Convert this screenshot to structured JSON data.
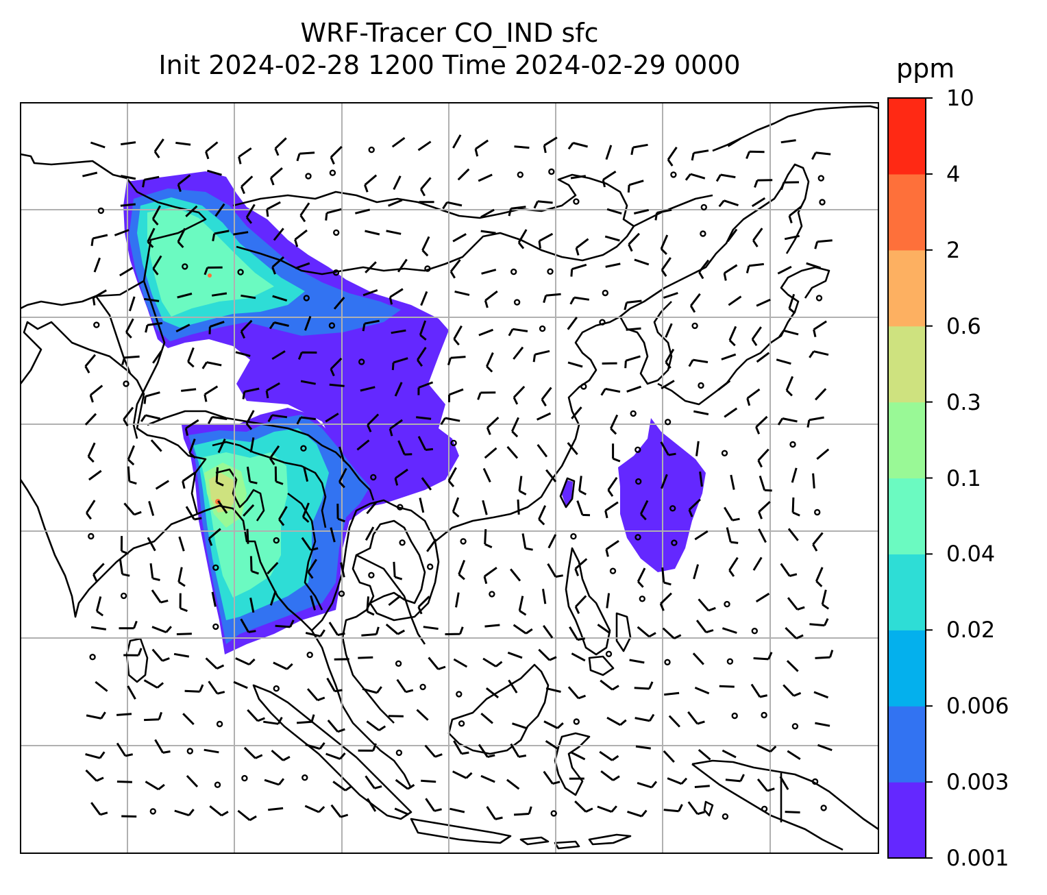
{
  "title": {
    "line1": "WRF-Tracer CO_IND sfc",
    "line2": "Init 2024-02-28 1200 Time 2024-02-29 0000"
  },
  "colorbar": {
    "unit": "ppm",
    "tick_labels": [
      "0.001",
      "0.003",
      "0.006",
      "0.02",
      "0.04",
      "0.1",
      "0.3",
      "0.6",
      "2",
      "4",
      "10"
    ],
    "colors": [
      "#6428FF",
      "#3273F2",
      "#04B0ED",
      "#2EDDD6",
      "#6BFAC1",
      "#99F996",
      "#CEE27F",
      "#FDB061",
      "#FE703A",
      "#FF2914"
    ]
  },
  "map": {
    "field": "CO_IND",
    "level": "sfc",
    "region": "South and East Asia",
    "gridlines": true,
    "features": [
      "coastlines",
      "country borders",
      "wind barbs",
      "calm wind circles"
    ],
    "plume_colors": {
      "trace": "#6428FF",
      "low": "#3273F2",
      "mid": "#2EDDD6",
      "high": "#6BFAC1",
      "higher": "#99F996",
      "peak": "#CEE27F",
      "hotspot": "#FE703A"
    }
  }
}
